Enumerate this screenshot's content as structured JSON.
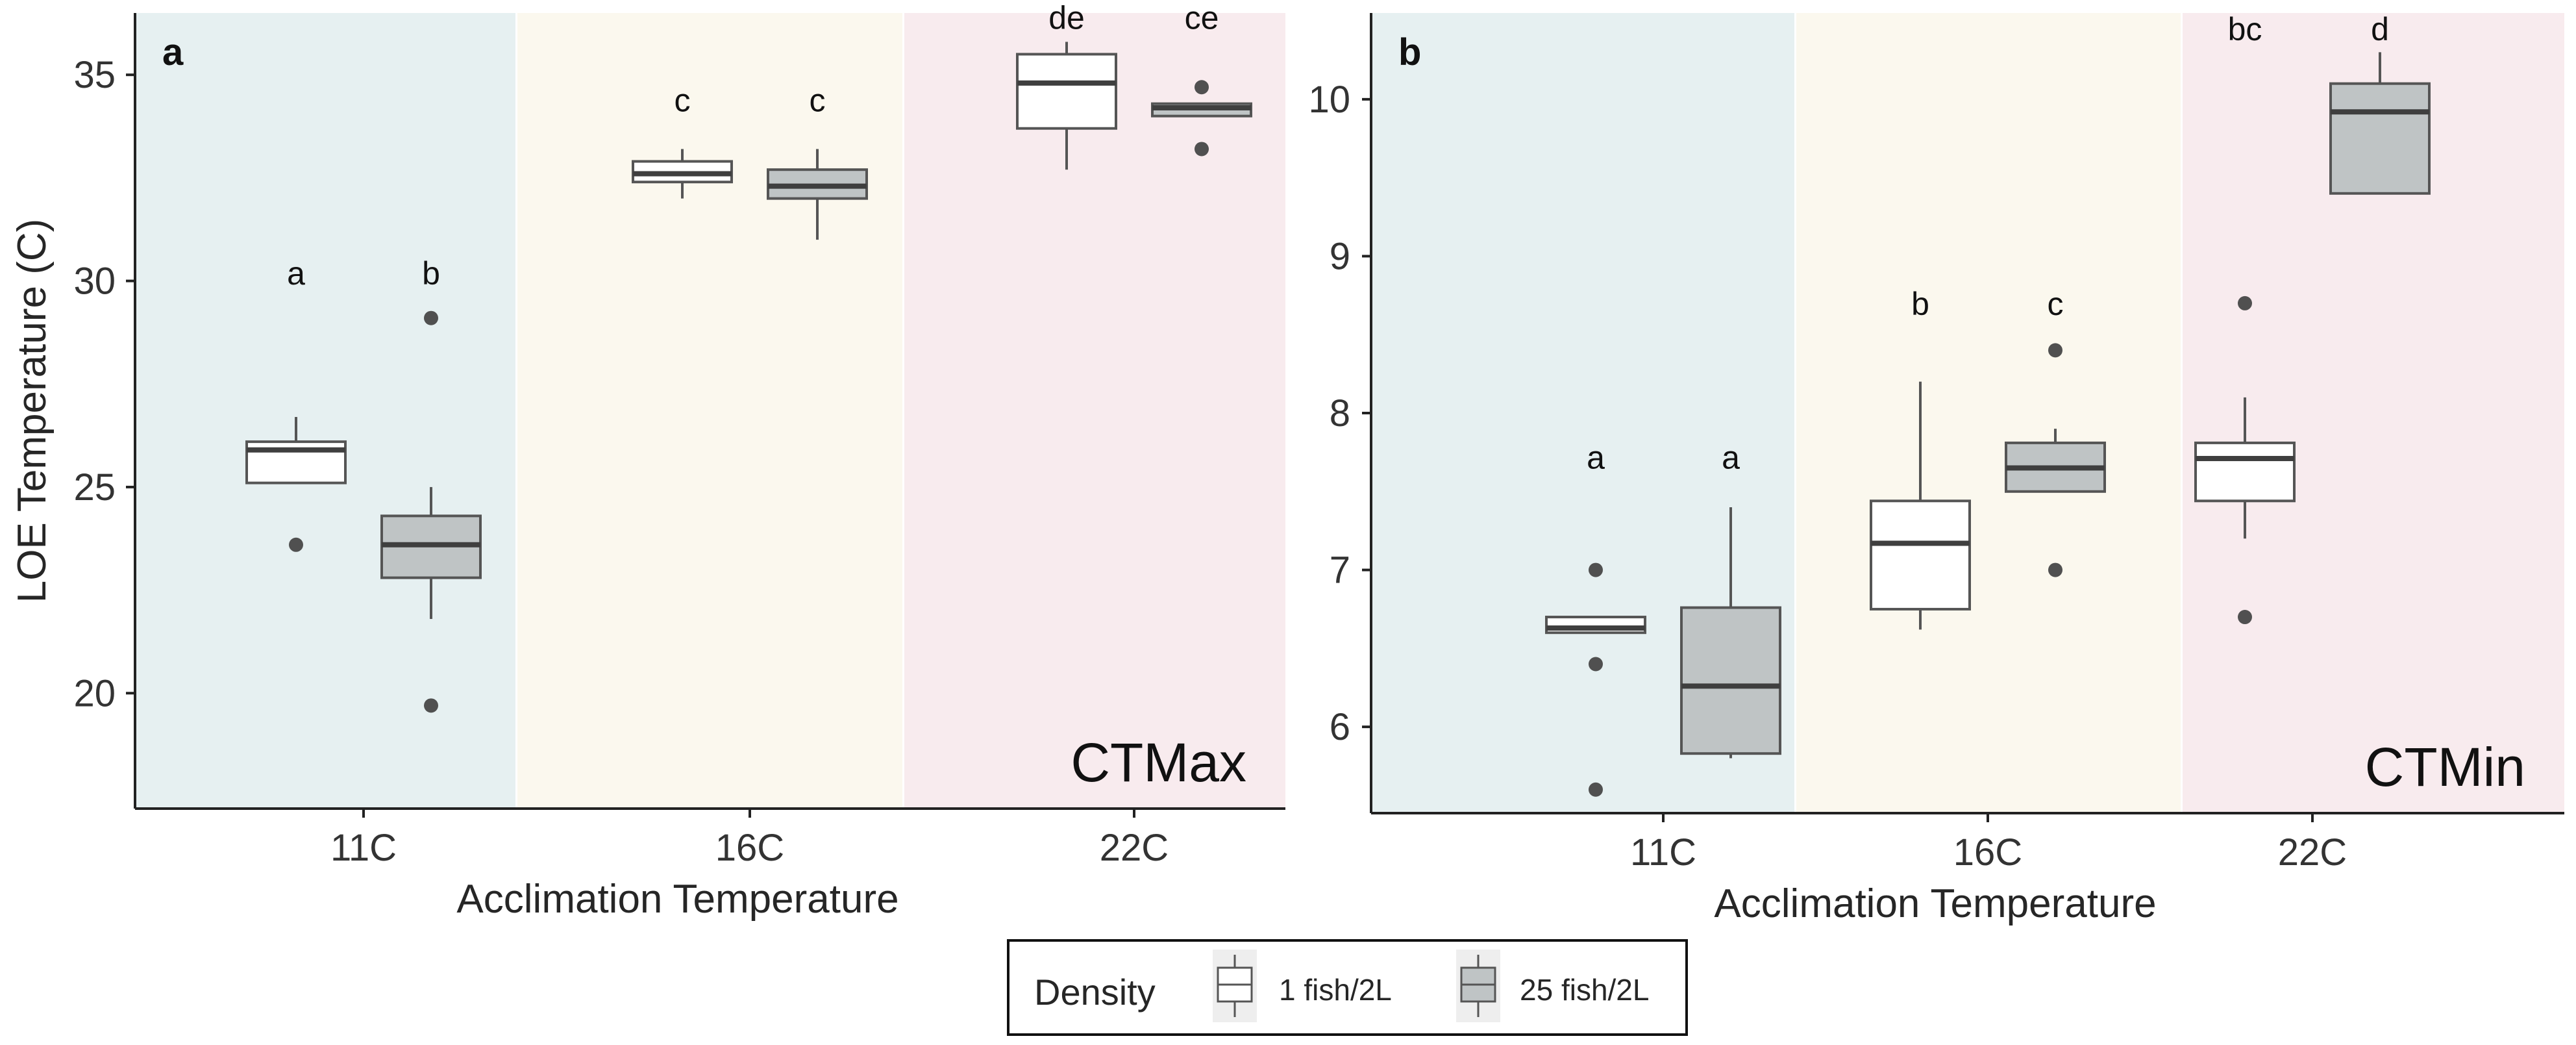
{
  "colors": {
    "bg_11C": "#e6f0f1",
    "bg_16C": "#fbf8ee",
    "bg_22C": "#f8ebee",
    "fill_1fish": "#ffffff",
    "fill_25fish": "#bfc4c5",
    "stroke": "#555555",
    "outlier": "#505050",
    "axis": "#222222",
    "text": "#262626"
  },
  "legend": {
    "title": "Density",
    "items": [
      {
        "label": "1 fish/2L",
        "fill": "#ffffff"
      },
      {
        "label": "25 fish/2L",
        "fill": "#bfc4c5"
      }
    ]
  },
  "chart_data": [
    {
      "type": "box",
      "panel_label": "a",
      "corner_label": "CTMax",
      "xlabel": "Acclimation Temperature",
      "ylabel": "LOE Temperature (C)",
      "categories": [
        "11C",
        "16C",
        "22C"
      ],
      "ylim": [
        17.2,
        36.5
      ],
      "yticks": [
        20,
        25,
        30,
        35
      ],
      "series_names": [
        "1 fish/2L",
        "25 fish/2L"
      ],
      "boxes": [
        {
          "category": "11C",
          "series": "1 fish/2L",
          "whisker_low": 25.1,
          "q1": 25.1,
          "median": 25.9,
          "q3": 26.1,
          "whisker_high": 26.7,
          "outliers": [
            23.6
          ],
          "letter": "a",
          "letter_y": 30.2,
          "bg": "#e6f0f1",
          "fill": "#ffffff"
        },
        {
          "category": "11C",
          "series": "25 fish/2L",
          "whisker_low": 21.8,
          "q1": 22.8,
          "median": 23.6,
          "q3": 24.3,
          "whisker_high": 25.0,
          "outliers": [
            29.1,
            19.7
          ],
          "letter": "b",
          "letter_y": 30.2,
          "bg": "#e6f0f1",
          "fill": "#bfc4c5"
        },
        {
          "category": "16C",
          "series": "1 fish/2L",
          "whisker_low": 32.0,
          "q1": 32.4,
          "median": 32.6,
          "q3": 32.9,
          "whisker_high": 33.2,
          "outliers": [],
          "letter": "c",
          "letter_y": 34.4,
          "bg": "#fbf8ee",
          "fill": "#ffffff"
        },
        {
          "category": "16C",
          "series": "25 fish/2L",
          "whisker_low": 31.0,
          "q1": 32.0,
          "median": 32.3,
          "q3": 32.7,
          "whisker_high": 33.2,
          "outliers": [],
          "letter": "c",
          "letter_y": 34.4,
          "bg": "#fbf8ee",
          "fill": "#bfc4c5"
        },
        {
          "category": "22C",
          "series": "1 fish/2L",
          "whisker_low": 32.7,
          "q1": 33.7,
          "median": 34.8,
          "q3": 35.5,
          "whisker_high": 35.8,
          "outliers": [],
          "letter": "de",
          "letter_y": 36.4,
          "bg": "#f8ebee",
          "fill": "#ffffff"
        },
        {
          "category": "22C",
          "series": "25 fish/2L",
          "whisker_low": 34.0,
          "q1": 34.0,
          "median": 34.2,
          "q3": 34.3,
          "whisker_high": 34.3,
          "outliers": [
            34.7,
            33.2
          ],
          "letter": "ce",
          "letter_y": 36.4,
          "bg": "#f8ebee",
          "fill": "#bfc4c5"
        }
      ]
    },
    {
      "type": "box",
      "panel_label": "b",
      "corner_label": "CTMin",
      "xlabel": "Acclimation Temperature",
      "ylabel": "",
      "categories": [
        "11C",
        "16C",
        "22C"
      ],
      "ylim": [
        5.45,
        10.55
      ],
      "yticks": [
        6,
        7,
        8,
        9,
        10
      ],
      "series_names": [
        "1 fish/2L",
        "25 fish/2L"
      ],
      "boxes": [
        {
          "category": "11C",
          "series": "1 fish/2L",
          "whisker_low": 6.6,
          "q1": 6.6,
          "median": 6.63,
          "q3": 6.7,
          "whisker_high": 6.7,
          "outliers": [
            7.0,
            6.4,
            5.6
          ],
          "letter": "a",
          "letter_y": 7.72,
          "bg": "#e6f0f1",
          "fill": "#ffffff"
        },
        {
          "category": "11C",
          "series": "25 fish/2L",
          "whisker_low": 5.8,
          "q1": 5.83,
          "median": 6.26,
          "q3": 6.76,
          "whisker_high": 7.4,
          "outliers": [],
          "letter": "a",
          "letter_y": 7.72,
          "bg": "#e6f0f1",
          "fill": "#bfc4c5"
        },
        {
          "category": "16C",
          "series": "1 fish/2L",
          "whisker_low": 6.62,
          "q1": 6.75,
          "median": 7.17,
          "q3": 7.44,
          "whisker_high": 8.2,
          "outliers": [],
          "letter": "b",
          "letter_y": 8.7,
          "bg": "#fbf8ee",
          "fill": "#ffffff"
        },
        {
          "category": "16C",
          "series": "25 fish/2L",
          "whisker_low": 7.5,
          "q1": 7.5,
          "median": 7.65,
          "q3": 7.81,
          "whisker_high": 7.9,
          "outliers": [
            8.4,
            7.0
          ],
          "letter": "c",
          "letter_y": 8.7,
          "bg": "#fbf8ee",
          "fill": "#bfc4c5"
        },
        {
          "category": "22C",
          "series": "1 fish/2L",
          "whisker_low": 7.2,
          "q1": 7.44,
          "median": 7.71,
          "q3": 7.81,
          "whisker_high": 8.1,
          "outliers": [
            8.7,
            6.7
          ],
          "letter": "bc",
          "letter_y": 10.45,
          "bg": "#f8ebee",
          "fill": "#ffffff"
        },
        {
          "category": "22C",
          "series": "25 fish/2L",
          "whisker_low": 9.4,
          "q1": 9.4,
          "median": 9.92,
          "q3": 10.1,
          "whisker_high": 10.3,
          "outliers": [],
          "letter": "d",
          "letter_y": 10.45,
          "bg": "#f8ebee",
          "fill": "#bfc4c5"
        }
      ]
    }
  ]
}
